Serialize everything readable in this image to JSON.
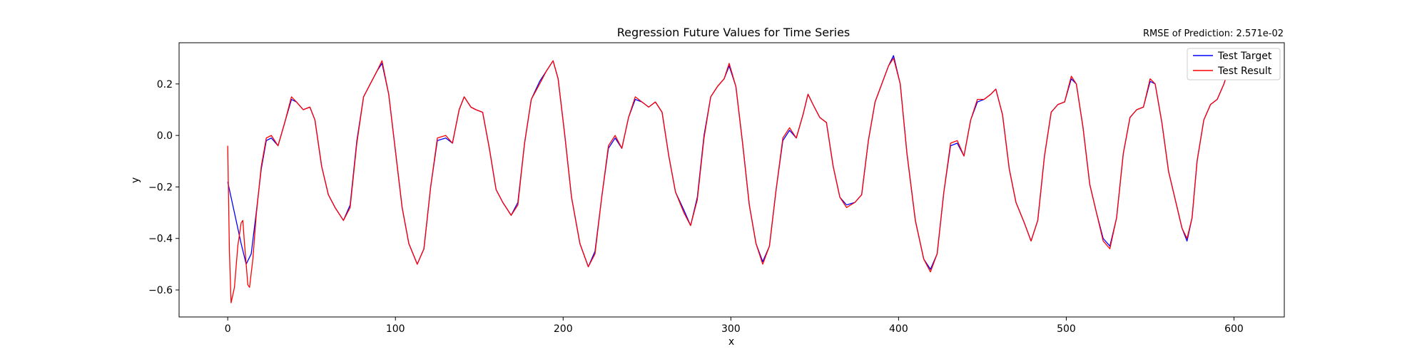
{
  "chart_data": {
    "type": "line",
    "title": "Regression Future Values for Time Series",
    "annotation": "RMSE of Prediction: 2.571e-02",
    "xlabel": "x",
    "ylabel": "y",
    "xlim": [
      -29,
      630
    ],
    "ylim": [
      -0.705,
      0.36
    ],
    "xticks": [
      0,
      100,
      200,
      300,
      400,
      500,
      600
    ],
    "yticks": [
      -0.6,
      -0.4,
      -0.2,
      0.0,
      0.2
    ],
    "xtick_labels": [
      "0",
      "100",
      "200",
      "300",
      "400",
      "500",
      "600"
    ],
    "ytick_labels": [
      "−0.6",
      "−0.4",
      "−0.2",
      "0.0",
      "0.2"
    ],
    "grid": false,
    "legend_position": "top-right",
    "series": [
      {
        "name": "Test Target",
        "color": "#0000ff",
        "points": [
          [
            0,
            -0.18
          ],
          [
            4,
            -0.3
          ],
          [
            8,
            -0.42
          ],
          [
            11,
            -0.5
          ],
          [
            14,
            -0.46
          ],
          [
            17,
            -0.3
          ],
          [
            20,
            -0.13
          ],
          [
            23,
            -0.02
          ],
          [
            26,
            -0.01
          ],
          [
            30,
            -0.04
          ],
          [
            34,
            0.05
          ],
          [
            38,
            0.14
          ],
          [
            41,
            0.13
          ],
          [
            45,
            0.1
          ],
          [
            49,
            0.11
          ],
          [
            52,
            0.06
          ],
          [
            56,
            -0.12
          ],
          [
            60,
            -0.23
          ],
          [
            64,
            -0.28
          ],
          [
            69,
            -0.33
          ],
          [
            73,
            -0.27
          ],
          [
            77,
            -0.02
          ],
          [
            81,
            0.15
          ],
          [
            85,
            0.2
          ],
          [
            89,
            0.25
          ],
          [
            92,
            0.28
          ],
          [
            96,
            0.16
          ],
          [
            100,
            -0.06
          ],
          [
            104,
            -0.28
          ],
          [
            108,
            -0.42
          ],
          [
            113,
            -0.5
          ],
          [
            117,
            -0.44
          ],
          [
            121,
            -0.2
          ],
          [
            125,
            -0.02
          ],
          [
            130,
            -0.01
          ],
          [
            134,
            -0.03
          ],
          [
            138,
            0.1
          ],
          [
            141,
            0.15
          ],
          [
            145,
            0.11
          ],
          [
            148,
            0.1
          ],
          [
            152,
            0.09
          ],
          [
            156,
            -0.05
          ],
          [
            160,
            -0.21
          ],
          [
            164,
            -0.26
          ],
          [
            169,
            -0.31
          ],
          [
            173,
            -0.26
          ],
          [
            177,
            -0.03
          ],
          [
            181,
            0.14
          ],
          [
            186,
            0.21
          ],
          [
            190,
            0.25
          ],
          [
            194,
            0.29
          ],
          [
            197,
            0.22
          ],
          [
            201,
            0.0
          ],
          [
            205,
            -0.24
          ],
          [
            210,
            -0.42
          ],
          [
            215,
            -0.51
          ],
          [
            219,
            -0.45
          ],
          [
            223,
            -0.24
          ],
          [
            227,
            -0.05
          ],
          [
            231,
            -0.01
          ],
          [
            235,
            -0.05
          ],
          [
            239,
            0.07
          ],
          [
            243,
            0.14
          ],
          [
            247,
            0.13
          ],
          [
            251,
            0.11
          ],
          [
            255,
            0.13
          ],
          [
            259,
            0.09
          ],
          [
            263,
            -0.08
          ],
          [
            267,
            -0.22
          ],
          [
            272,
            -0.29
          ],
          [
            276,
            -0.35
          ],
          [
            280,
            -0.24
          ],
          [
            284,
            0.0
          ],
          [
            288,
            0.15
          ],
          [
            292,
            0.19
          ],
          [
            296,
            0.22
          ],
          [
            299,
            0.27
          ],
          [
            303,
            0.19
          ],
          [
            307,
            -0.03
          ],
          [
            311,
            -0.27
          ],
          [
            315,
            -0.42
          ],
          [
            319,
            -0.49
          ],
          [
            323,
            -0.43
          ],
          [
            327,
            -0.21
          ],
          [
            331,
            -0.02
          ],
          [
            335,
            0.02
          ],
          [
            339,
            -0.01
          ],
          [
            343,
            0.08
          ],
          [
            346,
            0.16
          ],
          [
            349,
            0.12
          ],
          [
            353,
            0.07
          ],
          [
            357,
            0.05
          ],
          [
            361,
            -0.12
          ],
          [
            365,
            -0.24
          ],
          [
            369,
            -0.27
          ],
          [
            374,
            -0.26
          ],
          [
            378,
            -0.23
          ],
          [
            382,
            -0.02
          ],
          [
            386,
            0.13
          ],
          [
            390,
            0.2
          ],
          [
            394,
            0.27
          ],
          [
            397,
            0.31
          ],
          [
            401,
            0.2
          ],
          [
            405,
            -0.07
          ],
          [
            410,
            -0.33
          ],
          [
            415,
            -0.48
          ],
          [
            419,
            -0.52
          ],
          [
            423,
            -0.46
          ],
          [
            427,
            -0.22
          ],
          [
            431,
            -0.04
          ],
          [
            435,
            -0.03
          ],
          [
            439,
            -0.08
          ],
          [
            443,
            0.06
          ],
          [
            447,
            0.13
          ],
          [
            451,
            0.14
          ],
          [
            455,
            0.16
          ],
          [
            458,
            0.18
          ],
          [
            462,
            0.08
          ],
          [
            466,
            -0.13
          ],
          [
            470,
            -0.26
          ],
          [
            475,
            -0.34
          ],
          [
            479,
            -0.41
          ],
          [
            483,
            -0.33
          ],
          [
            487,
            -0.08
          ],
          [
            491,
            0.09
          ],
          [
            495,
            0.12
          ],
          [
            499,
            0.13
          ],
          [
            503,
            0.22
          ],
          [
            506,
            0.2
          ],
          [
            510,
            0.03
          ],
          [
            514,
            -0.19
          ],
          [
            518,
            -0.3
          ],
          [
            522,
            -0.4
          ],
          [
            526,
            -0.43
          ],
          [
            530,
            -0.32
          ],
          [
            534,
            -0.07
          ],
          [
            538,
            0.07
          ],
          [
            542,
            0.1
          ],
          [
            546,
            0.11
          ],
          [
            550,
            0.21
          ],
          [
            553,
            0.2
          ],
          [
            557,
            0.05
          ],
          [
            561,
            -0.14
          ],
          [
            565,
            -0.25
          ],
          [
            569,
            -0.36
          ],
          [
            572,
            -0.41
          ],
          [
            575,
            -0.32
          ],
          [
            578,
            -0.1
          ],
          [
            582,
            0.06
          ],
          [
            586,
            0.12
          ],
          [
            590,
            0.14
          ],
          [
            594,
            0.2
          ],
          [
            597,
            0.26
          ]
        ]
      },
      {
        "name": "Test Result",
        "color": "#ff0000",
        "points": [
          [
            0,
            -0.04
          ],
          [
            1,
            -0.45
          ],
          [
            2,
            -0.65
          ],
          [
            4,
            -0.59
          ],
          [
            6,
            -0.43
          ],
          [
            8,
            -0.34
          ],
          [
            9,
            -0.33
          ],
          [
            10,
            -0.42
          ],
          [
            12,
            -0.58
          ],
          [
            13,
            -0.59
          ],
          [
            15,
            -0.48
          ],
          [
            17,
            -0.31
          ],
          [
            20,
            -0.12
          ],
          [
            23,
            -0.01
          ],
          [
            26,
            -0.0
          ],
          [
            30,
            -0.04
          ],
          [
            34,
            0.05
          ],
          [
            38,
            0.15
          ],
          [
            41,
            0.13
          ],
          [
            45,
            0.1
          ],
          [
            49,
            0.11
          ],
          [
            52,
            0.06
          ],
          [
            56,
            -0.12
          ],
          [
            60,
            -0.23
          ],
          [
            64,
            -0.28
          ],
          [
            69,
            -0.33
          ],
          [
            73,
            -0.28
          ],
          [
            77,
            -0.03
          ],
          [
            81,
            0.15
          ],
          [
            85,
            0.2
          ],
          [
            89,
            0.25
          ],
          [
            92,
            0.29
          ],
          [
            96,
            0.16
          ],
          [
            100,
            -0.06
          ],
          [
            104,
            -0.28
          ],
          [
            108,
            -0.42
          ],
          [
            113,
            -0.5
          ],
          [
            117,
            -0.44
          ],
          [
            121,
            -0.2
          ],
          [
            125,
            -0.01
          ],
          [
            130,
            -0.0
          ],
          [
            134,
            -0.03
          ],
          [
            138,
            0.1
          ],
          [
            141,
            0.15
          ],
          [
            145,
            0.11
          ],
          [
            148,
            0.1
          ],
          [
            152,
            0.09
          ],
          [
            156,
            -0.05
          ],
          [
            160,
            -0.21
          ],
          [
            164,
            -0.26
          ],
          [
            169,
            -0.31
          ],
          [
            173,
            -0.27
          ],
          [
            177,
            -0.03
          ],
          [
            181,
            0.14
          ],
          [
            186,
            0.2
          ],
          [
            190,
            0.25
          ],
          [
            194,
            0.29
          ],
          [
            197,
            0.22
          ],
          [
            201,
            0.0
          ],
          [
            205,
            -0.24
          ],
          [
            210,
            -0.42
          ],
          [
            215,
            -0.51
          ],
          [
            219,
            -0.46
          ],
          [
            223,
            -0.24
          ],
          [
            227,
            -0.04
          ],
          [
            231,
            -0.0
          ],
          [
            235,
            -0.05
          ],
          [
            239,
            0.07
          ],
          [
            243,
            0.15
          ],
          [
            247,
            0.13
          ],
          [
            251,
            0.11
          ],
          [
            255,
            0.13
          ],
          [
            259,
            0.09
          ],
          [
            263,
            -0.08
          ],
          [
            267,
            -0.22
          ],
          [
            272,
            -0.3
          ],
          [
            276,
            -0.35
          ],
          [
            280,
            -0.25
          ],
          [
            284,
            -0.01
          ],
          [
            288,
            0.15
          ],
          [
            292,
            0.19
          ],
          [
            296,
            0.22
          ],
          [
            299,
            0.28
          ],
          [
            303,
            0.19
          ],
          [
            307,
            -0.03
          ],
          [
            311,
            -0.27
          ],
          [
            315,
            -0.42
          ],
          [
            319,
            -0.5
          ],
          [
            323,
            -0.43
          ],
          [
            327,
            -0.21
          ],
          [
            331,
            -0.01
          ],
          [
            335,
            0.03
          ],
          [
            339,
            -0.01
          ],
          [
            343,
            0.08
          ],
          [
            346,
            0.16
          ],
          [
            349,
            0.12
          ],
          [
            353,
            0.07
          ],
          [
            357,
            0.05
          ],
          [
            361,
            -0.12
          ],
          [
            365,
            -0.24
          ],
          [
            369,
            -0.28
          ],
          [
            374,
            -0.26
          ],
          [
            378,
            -0.23
          ],
          [
            382,
            -0.02
          ],
          [
            386,
            0.13
          ],
          [
            390,
            0.2
          ],
          [
            394,
            0.27
          ],
          [
            397,
            0.3
          ],
          [
            401,
            0.2
          ],
          [
            405,
            -0.07
          ],
          [
            410,
            -0.33
          ],
          [
            415,
            -0.48
          ],
          [
            419,
            -0.53
          ],
          [
            423,
            -0.46
          ],
          [
            427,
            -0.22
          ],
          [
            431,
            -0.03
          ],
          [
            435,
            -0.02
          ],
          [
            439,
            -0.08
          ],
          [
            443,
            0.06
          ],
          [
            447,
            0.14
          ],
          [
            451,
            0.14
          ],
          [
            455,
            0.16
          ],
          [
            458,
            0.18
          ],
          [
            462,
            0.08
          ],
          [
            466,
            -0.13
          ],
          [
            470,
            -0.26
          ],
          [
            475,
            -0.34
          ],
          [
            479,
            -0.41
          ],
          [
            483,
            -0.33
          ],
          [
            487,
            -0.08
          ],
          [
            491,
            0.09
          ],
          [
            495,
            0.12
          ],
          [
            499,
            0.13
          ],
          [
            503,
            0.23
          ],
          [
            506,
            0.2
          ],
          [
            510,
            0.03
          ],
          [
            514,
            -0.19
          ],
          [
            518,
            -0.3
          ],
          [
            522,
            -0.41
          ],
          [
            526,
            -0.44
          ],
          [
            530,
            -0.32
          ],
          [
            534,
            -0.07
          ],
          [
            538,
            0.07
          ],
          [
            542,
            0.1
          ],
          [
            546,
            0.11
          ],
          [
            550,
            0.22
          ],
          [
            553,
            0.2
          ],
          [
            557,
            0.05
          ],
          [
            561,
            -0.14
          ],
          [
            565,
            -0.25
          ],
          [
            569,
            -0.36
          ],
          [
            572,
            -0.4
          ],
          [
            575,
            -0.32
          ],
          [
            578,
            -0.1
          ],
          [
            582,
            0.06
          ],
          [
            586,
            0.12
          ],
          [
            590,
            0.14
          ],
          [
            594,
            0.2
          ],
          [
            597,
            0.26
          ]
        ]
      }
    ]
  }
}
